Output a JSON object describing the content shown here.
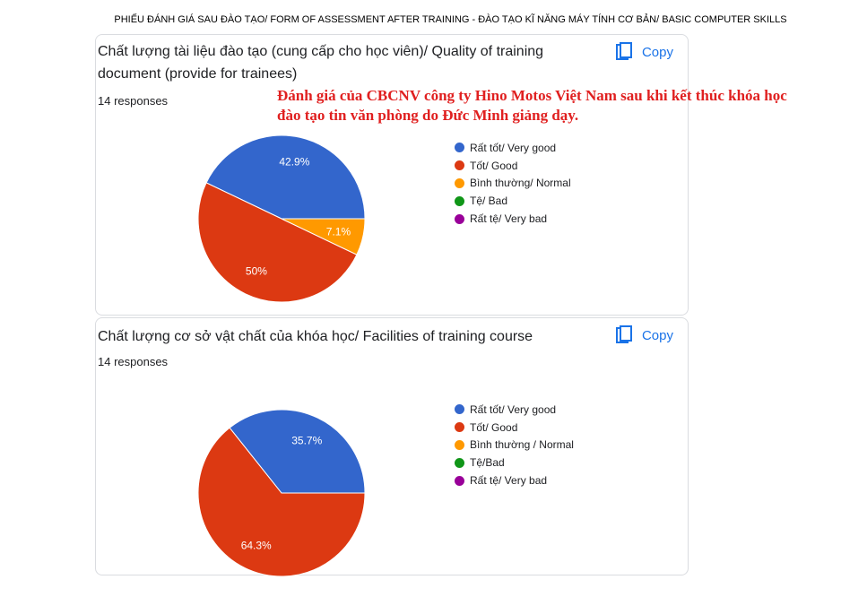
{
  "page_title": "PHIẾU ĐÁNH GIÁ SAU ĐÀO TẠO/ FORM OF ASSESSMENT AFTER TRAINING - ĐÀO TẠO KĨ NĂNG MÁY TÍNH CƠ BẢN/ BASIC COMPUTER SKILLS",
  "annotation": {
    "line1": "Đánh giá của CBCNV công ty Hino Motos Việt Nam sau khi kết thúc khóa học",
    "line2": "đào tạo tin văn phòng do Đức Minh giảng dạy."
  },
  "copy_label": "Copy",
  "colors": {
    "very_good": "#3366cc",
    "good": "#dc3912",
    "normal": "#ff9900",
    "bad": "#109618",
    "very_bad": "#990099",
    "copy_blue": "#1a73e8"
  },
  "chart_data": [
    {
      "type": "pie",
      "title": "Chất lượng tài liệu đào tạo (cung cấp cho học viên)/ Quality of training document (provide for trainees)",
      "responses": "14 responses",
      "categories": [
        "Rất tốt/ Very good",
        "Tốt/ Good",
        "Bình thường/ Normal",
        "Tệ/ Bad",
        "Rất tệ/ Very bad"
      ],
      "values": [
        42.9,
        50,
        7.1,
        0,
        0
      ],
      "labels": [
        "42.9%",
        "50%",
        "7.1%",
        "",
        ""
      ],
      "legend": "right"
    },
    {
      "type": "pie",
      "title": "Chất lượng cơ sở vật chất của khóa học/ Facilities of training course",
      "responses": "14 responses",
      "categories": [
        "Rất tốt/ Very good",
        "Tốt/ Good",
        "Bình thường / Normal",
        "Tệ/Bad",
        "Rất tệ/ Very bad"
      ],
      "values": [
        35.7,
        64.3,
        0,
        0,
        0
      ],
      "labels": [
        "35.7%",
        "64.3%",
        "",
        "",
        ""
      ],
      "legend": "right"
    }
  ]
}
